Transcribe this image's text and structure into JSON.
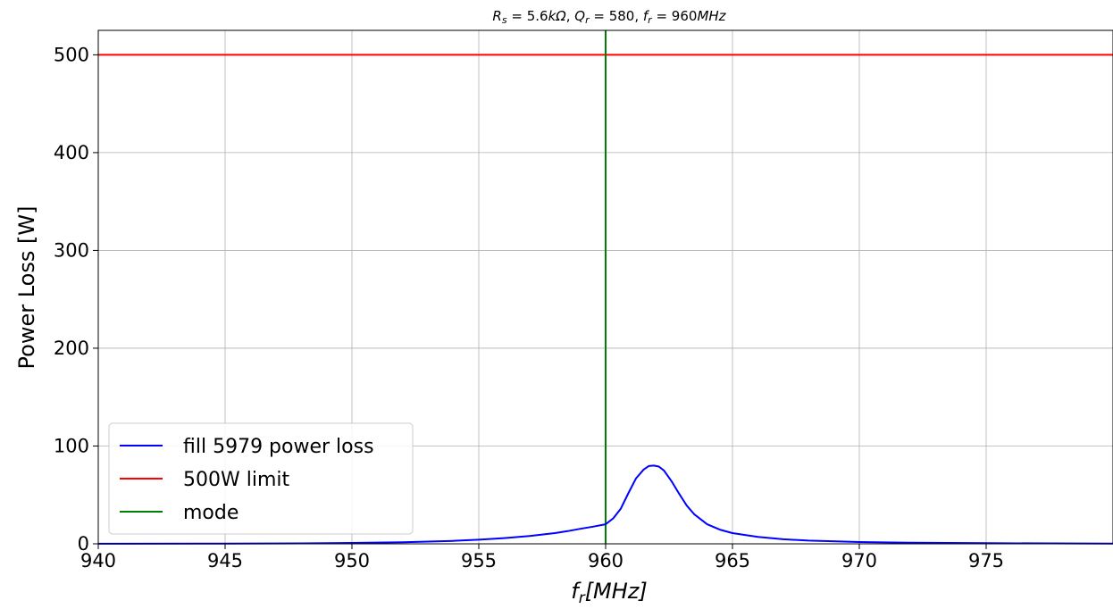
{
  "chart_data": {
    "type": "line",
    "title": "R_s = 5.6kΩ, Q_r = 580, f_r = 960MHz",
    "title_parts": {
      "rs_sym": "R",
      "rs_sub": "s",
      "rs_val": " = 5.6",
      "rs_unit": "kΩ",
      "qr_sym": "Q",
      "qr_sub": "r",
      "qr_val": " = 580, ",
      "fr_sym": "f",
      "fr_sub": "r",
      "fr_val": " = 960",
      "fr_unit": "MHz",
      "sep": ", "
    },
    "xlabel": "f_r[MHz]",
    "xlabel_parts": {
      "sym": "f",
      "sub": "r",
      "rest": "[MHz]"
    },
    "ylabel": "Power Loss [W]",
    "xlim": [
      940,
      980
    ],
    "ylim": [
      0,
      525
    ],
    "xticks": [
      "940",
      "945",
      "950",
      "955",
      "960",
      "965",
      "970",
      "975"
    ],
    "yticks": [
      "0",
      "100",
      "200",
      "300",
      "400",
      "500"
    ],
    "grid": true,
    "legend_position": "lower-left",
    "series": [
      {
        "name": "fill 5979 power loss",
        "color": "#0000ff",
        "x": [
          940,
          944,
          948,
          950,
          952,
          954,
          955,
          956,
          957,
          958,
          958.5,
          959,
          959.5,
          960,
          960.3,
          960.6,
          960.9,
          961.2,
          961.5,
          961.7,
          961.9,
          962.1,
          962.3,
          962.6,
          962.9,
          963.2,
          963.5,
          964,
          964.5,
          965,
          966,
          967,
          968,
          970,
          972,
          975,
          980
        ],
        "y": [
          0.1,
          0.2,
          0.5,
          0.9,
          1.6,
          3.0,
          4.2,
          5.8,
          8.0,
          11.0,
          13.0,
          15.3,
          17.5,
          20.0,
          26.0,
          36.0,
          52.0,
          67.0,
          76.0,
          79.5,
          80.0,
          79.0,
          75.0,
          64.0,
          51.0,
          39.0,
          30.0,
          20.0,
          14.5,
          11.0,
          7.0,
          4.7,
          3.3,
          1.8,
          1.1,
          0.6,
          0.2
        ]
      },
      {
        "name": "500W limit",
        "color": "#ff0000",
        "x": [
          940,
          980
        ],
        "y": [
          500,
          500
        ]
      },
      {
        "name": "mode",
        "color": "#008000",
        "x": [
          960,
          960
        ],
        "y": [
          0,
          525
        ]
      }
    ]
  }
}
